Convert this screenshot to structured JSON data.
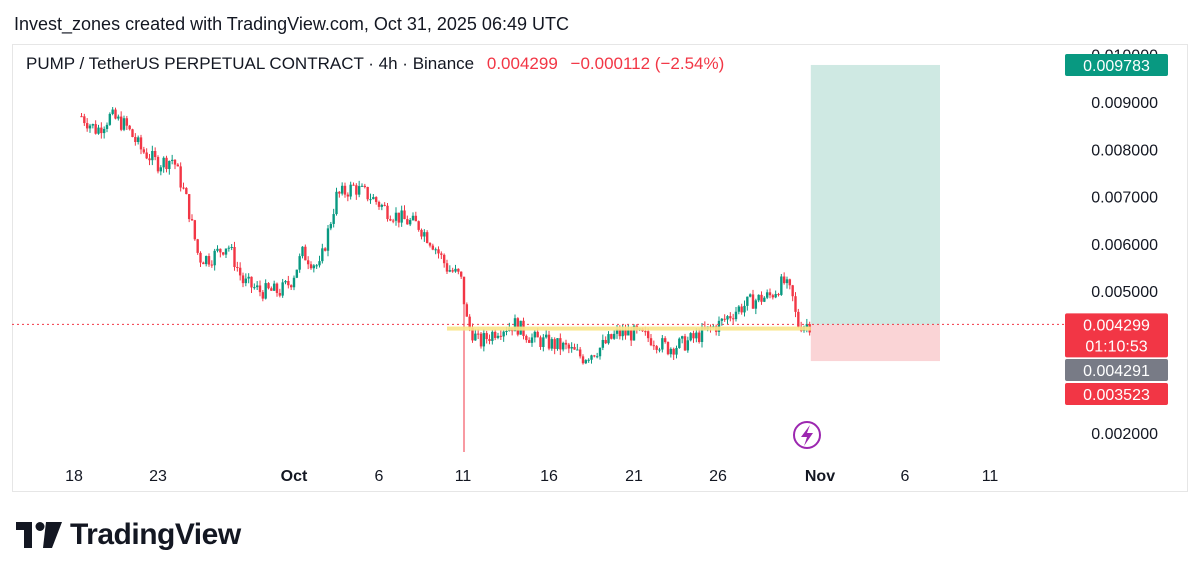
{
  "header": {
    "credit": "Invest_zones created with TradingView.com, Oct 31, 2025 06:49 UTC"
  },
  "legend": {
    "symbol": "PUMP / TetherUS PERPETUAL CONTRACT · 4h · Binance",
    "price": "0.004299",
    "change": "−0.000112 (−2.54%)"
  },
  "brand": {
    "name": "TradingView"
  },
  "colors": {
    "up": "#089981",
    "down": "#f23645",
    "profit_zone": "#cfe9e3",
    "loss_zone": "#fad4d6",
    "level_line": "#f9e58a",
    "profit_tag": "#089981",
    "loss_tag": "#f23645",
    "entry_tag": "#787b86"
  },
  "chart_data": {
    "type": "candlestick",
    "timeframe": "4h",
    "y_ticks": [
      "0.002000",
      "0.005000",
      "0.006000",
      "0.007000",
      "0.008000",
      "0.009000",
      "0.010000"
    ],
    "x_ticks": [
      {
        "label": "18",
        "bold": false
      },
      {
        "label": "23",
        "bold": false
      },
      {
        "label": "Oct",
        "bold": true
      },
      {
        "label": "6",
        "bold": false
      },
      {
        "label": "11",
        "bold": false
      },
      {
        "label": "16",
        "bold": false
      },
      {
        "label": "21",
        "bold": false
      },
      {
        "label": "26",
        "bold": false
      },
      {
        "label": "Nov",
        "bold": true
      },
      {
        "label": "6",
        "bold": false
      },
      {
        "label": "11",
        "bold": false
      }
    ],
    "ylim": [
      0.0013,
      0.0108
    ],
    "path_days": [
      [
        -12.5,
        0.0087
      ],
      [
        -11.6,
        0.0084
      ],
      [
        -10.8,
        0.0087
      ],
      [
        -9.9,
        0.0085
      ],
      [
        -9.0,
        0.008
      ],
      [
        -8.0,
        0.0077
      ],
      [
        -7.1,
        0.0078
      ],
      [
        -6.3,
        0.0069
      ],
      [
        -5.6,
        0.0057
      ],
      [
        -4.9,
        0.0057
      ],
      [
        -3.9,
        0.006
      ],
      [
        -3.0,
        0.0052
      ],
      [
        -2.0,
        0.005
      ],
      [
        -0.8,
        0.005
      ],
      [
        -0.2,
        0.0052
      ],
      [
        0.5,
        0.0058
      ],
      [
        1.5,
        0.0055
      ],
      [
        2.5,
        0.007
      ],
      [
        3.5,
        0.0072
      ],
      [
        4.5,
        0.007
      ],
      [
        5.5,
        0.0067
      ],
      [
        6.5,
        0.0065
      ],
      [
        7.3,
        0.0064
      ],
      [
        8.2,
        0.006
      ],
      [
        9.0,
        0.0055
      ],
      [
        9.8,
        0.0053
      ],
      [
        10.2,
        0.0043
      ],
      [
        10.9,
        0.0039
      ],
      [
        12.0,
        0.0042
      ],
      [
        13.0,
        0.0043
      ],
      [
        14.0,
        0.004
      ],
      [
        15.0,
        0.0039
      ],
      [
        16.0,
        0.0038
      ],
      [
        17.0,
        0.0036
      ],
      [
        18.0,
        0.0038
      ],
      [
        19.0,
        0.0041
      ],
      [
        20.0,
        0.0041
      ],
      [
        21.0,
        0.004
      ],
      [
        22.0,
        0.0038
      ],
      [
        23.0,
        0.0039
      ],
      [
        24.0,
        0.0041
      ],
      [
        25.0,
        0.0043
      ],
      [
        26.0,
        0.0046
      ],
      [
        27.0,
        0.0048
      ],
      [
        28.0,
        0.0049
      ],
      [
        28.8,
        0.0052
      ],
      [
        29.3,
        0.0049
      ],
      [
        29.6,
        0.0043
      ],
      [
        30.0,
        0.0043
      ],
      [
        30.4,
        0.0043
      ]
    ],
    "spike_low": {
      "day": 10.0,
      "price": 0.0016
    },
    "position": {
      "start_day": 30.4,
      "end_day": 38.0,
      "target_price": 0.009783,
      "entry_price": 0.004291,
      "stop_price": 0.003523
    },
    "level_line": {
      "price": 0.00421,
      "start_day": 9.0,
      "end_day": 30.4
    },
    "tags": [
      {
        "label": "0.009783",
        "price": 0.009783,
        "kind": "profit"
      },
      {
        "label": "0.004299",
        "sub": "01:10:53",
        "price": 0.004299,
        "kind": "price"
      },
      {
        "label": "0.004291",
        "price": 0.004291,
        "kind": "entry"
      },
      {
        "label": "0.003523",
        "price": 0.003523,
        "kind": "loss"
      }
    ]
  }
}
